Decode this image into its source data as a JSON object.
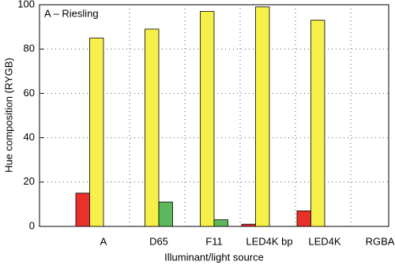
{
  "chart_data": {
    "type": "bar",
    "annotation": "A – Riesling",
    "x_label": "Illuminant/light source",
    "y_label": "Hue composition (RYGB)",
    "categories": [
      "A",
      "D65",
      "F11",
      "LED4K bp",
      "LED4K",
      "RGBA"
    ],
    "series": [
      {
        "color": "#e8312a",
        "values": [
          15,
          0,
          0,
          1,
          7,
          0
        ]
      },
      {
        "color": "#f7ef4a",
        "values": [
          85,
          89,
          97,
          99,
          93,
          0
        ]
      },
      {
        "color": "#5cb85c",
        "values": [
          0,
          11,
          3,
          0,
          0,
          0
        ]
      },
      {
        "color": "#3a5fcd",
        "values": [
          0,
          0,
          0,
          0,
          0,
          0
        ]
      }
    ],
    "ylim": [
      0,
      100
    ],
    "yticks": [
      0,
      20,
      40,
      60,
      80,
      100
    ],
    "grid": true
  }
}
